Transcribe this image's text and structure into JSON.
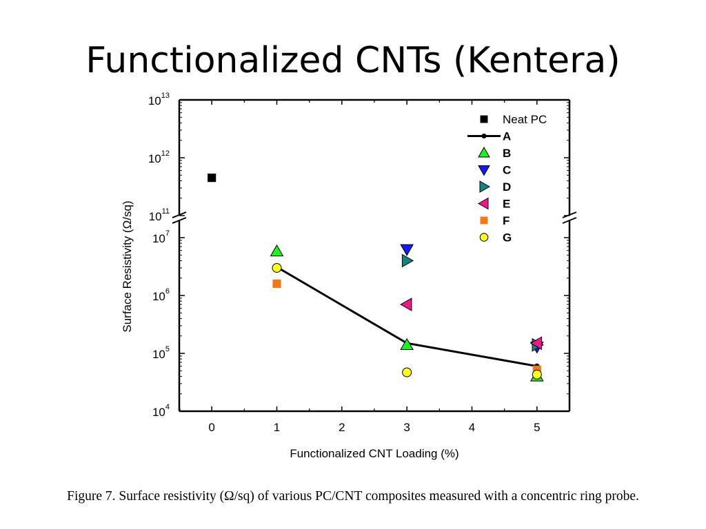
{
  "slide": {
    "title": "Functionalized CNTs (Kentera)",
    "caption": "Figure 7. Surface resistivity (Ω/sq) of various PC/CNT composites measured with a concentric ring probe."
  },
  "chart_data": {
    "type": "scatter",
    "xlabel": "Functionalized CNT Loading (%)",
    "ylabel": "Surface Resistivity (Ω/sq)",
    "xlim": [
      -0.5,
      5.5
    ],
    "x_ticks": [
      "0",
      "1",
      "2",
      "3",
      "4",
      "5"
    ],
    "y_scale": "log",
    "y_axis_break": {
      "lower_range": [
        10000,
        10000000
      ],
      "upper_range": [
        100000000000,
        10000000000000
      ]
    },
    "y_ticks": [
      {
        "base": "10",
        "exp": "4",
        "value": 10000
      },
      {
        "base": "10",
        "exp": "5",
        "value": 100000
      },
      {
        "base": "10",
        "exp": "6",
        "value": 1000000
      },
      {
        "base": "10",
        "exp": "7",
        "value": 10000000
      },
      {
        "base": "10",
        "exp": "11",
        "value": 100000000000
      },
      {
        "base": "10",
        "exp": "12",
        "value": 1000000000000
      },
      {
        "base": "10",
        "exp": "13",
        "value": 10000000000000
      }
    ],
    "grid": false,
    "legend_position": "top-right",
    "series": [
      {
        "name": "Neat PC",
        "marker": "square",
        "color": "#000000",
        "line": false,
        "points": [
          [
            0,
            450000000000
          ]
        ]
      },
      {
        "name": "A",
        "marker": "circle-small",
        "color": "#000000",
        "line": true,
        "points": [
          [
            1,
            3100000
          ],
          [
            3,
            150000
          ],
          [
            5,
            60000
          ]
        ]
      },
      {
        "name": "B",
        "marker": "triangle-up",
        "color": "#22ee22",
        "line": false,
        "points": [
          [
            1,
            5800000
          ],
          [
            3,
            140000
          ],
          [
            5,
            40000
          ]
        ]
      },
      {
        "name": "C",
        "marker": "triangle-down",
        "color": "#1a1aee",
        "line": false,
        "points": [
          [
            3,
            6300000
          ],
          [
            5,
            130000
          ]
        ]
      },
      {
        "name": "D",
        "marker": "triangle-right",
        "color": "#1a8080",
        "line": false,
        "points": [
          [
            3,
            4000000
          ],
          [
            5,
            140000
          ]
        ]
      },
      {
        "name": "E",
        "marker": "triangle-left",
        "color": "#ee1a8c",
        "line": false,
        "points": [
          [
            3,
            700000
          ],
          [
            5,
            150000
          ]
        ]
      },
      {
        "name": "F",
        "marker": "square",
        "color": "#f07a1a",
        "line": false,
        "points": [
          [
            1,
            1600000
          ],
          [
            5,
            52000
          ]
        ]
      },
      {
        "name": "G",
        "marker": "circle",
        "color": "#ffff22",
        "line": false,
        "points": [
          [
            1,
            3000000
          ],
          [
            3,
            47000
          ],
          [
            5,
            43000
          ]
        ]
      }
    ]
  }
}
